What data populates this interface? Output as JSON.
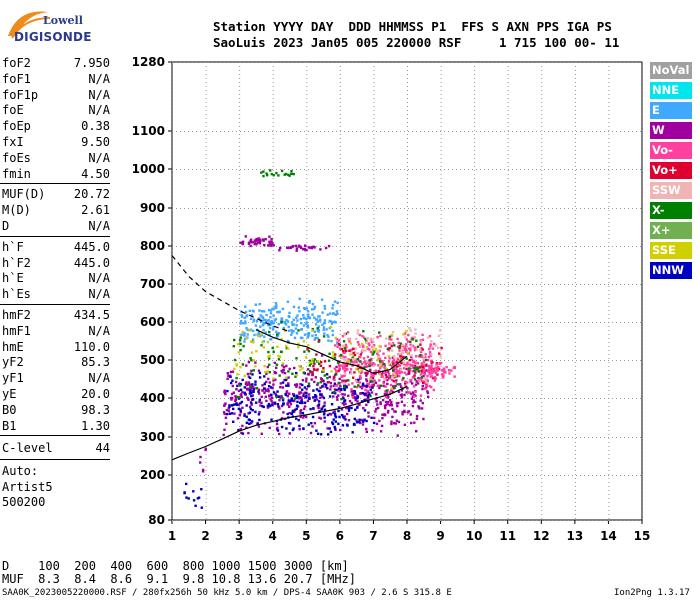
{
  "logo": {
    "line1": "Lowell",
    "line2": "DIGISONDE"
  },
  "header": {
    "line1": "Station YYYY DAY  DDD HHMMSS P1  FFS S AXN PPS IGA PS",
    "line2": "SaoLuis 2023 Jan05 005 220000 RSF     1 715 100 00- 11"
  },
  "params_group1": [
    {
      "name": "foF2",
      "value": "7.950"
    },
    {
      "name": "foF1",
      "value": "N/A"
    },
    {
      "name": "foF1p",
      "value": "N/A"
    },
    {
      "name": "foE",
      "value": "N/A"
    },
    {
      "name": "foEp",
      "value": "0.38"
    },
    {
      "name": "fxI",
      "value": "9.50"
    },
    {
      "name": "foEs",
      "value": "N/A"
    },
    {
      "name": "fmin",
      "value": "4.50"
    }
  ],
  "params_group2": [
    {
      "name": "MUF(D)",
      "value": "20.72"
    },
    {
      "name": "M(D)",
      "value": "2.61"
    },
    {
      "name": "D",
      "value": "N/A"
    }
  ],
  "params_group3": [
    {
      "name": "h`F",
      "value": "445.0"
    },
    {
      "name": "h`F2",
      "value": "445.0"
    },
    {
      "name": "h`E",
      "value": "N/A"
    },
    {
      "name": "h`Es",
      "value": "N/A"
    }
  ],
  "params_group4": [
    {
      "name": "hmF2",
      "value": "434.5"
    },
    {
      "name": "hmF1",
      "value": "N/A"
    },
    {
      "name": "hmE",
      "value": "110.0"
    },
    {
      "name": "yF2",
      "value": "85.3"
    },
    {
      "name": "yF1",
      "value": "N/A"
    },
    {
      "name": "yE",
      "value": "20.0"
    },
    {
      "name": "B0",
      "value": "98.3"
    },
    {
      "name": "B1",
      "value": "1.30"
    }
  ],
  "clevel": {
    "name": "C-level",
    "value": "44"
  },
  "autoscale": [
    "Auto:",
    "Artist5",
    "500200"
  ],
  "legend": [
    {
      "label": "NoVal",
      "color": "#a0a0a0"
    },
    {
      "label": "NNE",
      "color": "#00e5ee"
    },
    {
      "label": "E",
      "color": "#40a8ff"
    },
    {
      "label": "W",
      "color": "#a000a0"
    },
    {
      "label": "Vo-",
      "color": "#ff40a0"
    },
    {
      "label": "Vo+",
      "color": "#e00030"
    },
    {
      "label": "SSW",
      "color": "#f0b4b4"
    },
    {
      "label": "X-",
      "color": "#008000"
    },
    {
      "label": "X+",
      "color": "#70b050"
    },
    {
      "label": "SSE",
      "color": "#d0d000"
    },
    {
      "label": "NNW",
      "color": "#0000c0"
    }
  ],
  "muf_table": {
    "d_row": "D    100  200  400  600  800 1000 1500 3000 [km]",
    "muf_row": "MUF  8.3  8.4  8.6  9.1  9.8 10.8 13.6 20.7 [MHz]"
  },
  "footer": {
    "left": "SAA0K_2023005220000.RSF / 280fx256h 50 kHz 5.0 km / DPS-4 SAA0K 903 / 2.6 S 315.8 E",
    "right": "Ion2Png 1.3.17"
  },
  "chart_data": {
    "type": "scatter",
    "x_ticks": [
      1,
      2,
      3,
      4,
      5,
      6,
      7,
      8,
      9,
      10,
      11,
      12,
      13,
      14,
      15
    ],
    "y_ticks": [
      80,
      200,
      300,
      400,
      500,
      600,
      700,
      800,
      900,
      1000,
      1100,
      1280
    ],
    "xlim": [
      1,
      15
    ],
    "ylim": [
      80,
      1280
    ],
    "y_axis_note": "non-linear height scale",
    "profile_curve": [
      [
        1.0,
        240
      ],
      [
        1.5,
        258
      ],
      [
        2.0,
        275
      ],
      [
        2.5,
        295
      ],
      [
        3.0,
        315
      ],
      [
        3.5,
        330
      ],
      [
        4.0,
        340
      ],
      [
        4.5,
        350
      ],
      [
        5.0,
        357
      ],
      [
        5.5,
        365
      ],
      [
        6.0,
        373
      ],
      [
        6.5,
        385
      ],
      [
        7.0,
        398
      ],
      [
        7.5,
        410
      ],
      [
        8.0,
        430
      ]
    ],
    "trace_curve": [
      [
        3.5,
        580
      ],
      [
        4.0,
        560
      ],
      [
        4.5,
        545
      ],
      [
        5.0,
        535
      ],
      [
        5.5,
        515
      ],
      [
        6.0,
        495
      ],
      [
        6.5,
        485
      ],
      [
        7.0,
        465
      ],
      [
        7.5,
        475
      ],
      [
        8.0,
        510
      ]
    ],
    "ox_dashed_curve": [
      [
        1.0,
        775
      ],
      [
        1.5,
        720
      ],
      [
        2.0,
        680
      ],
      [
        2.5,
        655
      ],
      [
        3.0,
        630
      ],
      [
        3.5,
        610
      ],
      [
        4.0,
        590
      ],
      [
        4.5,
        575
      ]
    ],
    "clusters": [
      {
        "color": "#a000a0",
        "x": [
          2.5,
          8.6
        ],
        "y": [
          300,
          520
        ],
        "n": 550
      },
      {
        "color": "#ff40a0",
        "x": [
          5.8,
          8.8
        ],
        "y": [
          400,
          580
        ],
        "n": 380
      },
      {
        "color": "#0000c0",
        "x": [
          2.6,
          7.0
        ],
        "y": [
          300,
          480
        ],
        "n": 260
      },
      {
        "color": "#40a8ff",
        "x": [
          3.0,
          5.9
        ],
        "y": [
          540,
          670
        ],
        "n": 240
      },
      {
        "color": "#008000",
        "x": [
          2.8,
          8.6
        ],
        "y": [
          380,
          620
        ],
        "n": 140
      },
      {
        "color": "#d0d000",
        "x": [
          2.8,
          8.0
        ],
        "y": [
          420,
          600
        ],
        "n": 90
      },
      {
        "color": "#f0b4b4",
        "x": [
          6.0,
          9.0
        ],
        "y": [
          420,
          620
        ],
        "n": 90
      },
      {
        "color": "#e00030",
        "x": [
          5.0,
          9.0
        ],
        "y": [
          420,
          560
        ],
        "n": 70
      },
      {
        "color": "#ff40a0",
        "x": [
          8.6,
          9.4
        ],
        "y": [
          450,
          500
        ],
        "n": 50
      },
      {
        "color": "#a000a0",
        "x": [
          3.0,
          4.0
        ],
        "y": [
          800,
          830
        ],
        "n": 40
      },
      {
        "color": "#a000a0",
        "x": [
          4.0,
          5.7
        ],
        "y": [
          790,
          805
        ],
        "n": 30
      },
      {
        "color": "#008000",
        "x": [
          3.6,
          4.6
        ],
        "y": [
          980,
          1000
        ],
        "n": 18
      },
      {
        "color": "#0000c0",
        "x": [
          1.3,
          1.9
        ],
        "y": [
          80,
          200
        ],
        "n": 12
      },
      {
        "color": "#a000a0",
        "x": [
          1.8,
          2.0
        ],
        "y": [
          200,
          300
        ],
        "n": 6
      }
    ]
  }
}
